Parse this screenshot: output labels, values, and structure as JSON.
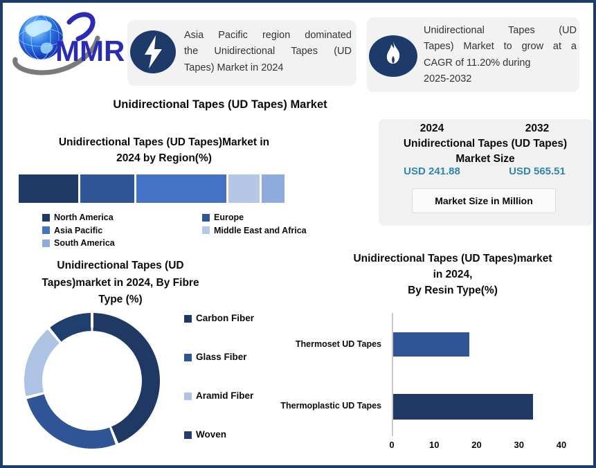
{
  "brand": {
    "logo_text": "MMR"
  },
  "callouts": [
    {
      "icon": "lightning-icon",
      "lines": [
        "Asia Pacific region dominated",
        "the Unidirectional Tapes (UD",
        "Tapes) Market in 2024"
      ]
    },
    {
      "icon": "flame-icon",
      "lines": [
        "Unidirectional Tapes (UD",
        "Tapes) Market to grow at a",
        "CAGR of 11.20% during",
        "2025-2032"
      ]
    }
  ],
  "main_title": "Unidirectional Tapes (UD Tapes) Market",
  "size_panel": {
    "year_left": "2024",
    "year_right": "2032",
    "title": "Unidirectional Tapes (UD Tapes)\nMarket Size",
    "value_left": "USD 241.88",
    "value_right": "USD 565.51",
    "unit_note": "Market Size in Million",
    "value_color": "#2E86AD"
  },
  "chart_data": [
    {
      "id": "by_region",
      "type": "stacked-bar",
      "title": "Unidirectional Tapes (UD Tapes)Market in\n2024 by Region(%)",
      "categories": [
        "North America",
        "Europe",
        "Asia Pacific",
        "Middle East and Africa",
        "South America"
      ],
      "values": [
        23,
        21,
        35,
        12,
        9
      ],
      "colors": [
        "#1F3864",
        "#2F5597",
        "#4472C4",
        "#B4C7E7",
        "#8FAADC"
      ],
      "legend_columns": [
        [
          0,
          2,
          4
        ],
        [
          1,
          3
        ]
      ],
      "legend_position": "bottom",
      "axis": "none"
    },
    {
      "id": "by_fibre_type",
      "type": "donut",
      "title": "Unidirectional Tapes (UD\nTapes)market in 2024, By Fibre\nType (%)",
      "categories": [
        "Carbon Fiber",
        "Glass Fiber",
        "Aramid Fiber",
        "Woven"
      ],
      "values": [
        44,
        27,
        18,
        11
      ],
      "colors": [
        "#1F3864",
        "#2F5597",
        "#AEC2E4",
        "#203E6E"
      ],
      "legend_position": "right"
    },
    {
      "id": "by_resin_type",
      "type": "bar",
      "orientation": "horizontal",
      "title": "Unidirectional Tapes (UD Tapes)market\nin 2024,\nBy Resin Type(%)",
      "categories": [
        "Thermoset UD Tapes",
        "Thermoplastic UD Tapes"
      ],
      "values": [
        18,
        33
      ],
      "colors": [
        "#2F5597",
        "#1F3864"
      ],
      "xlim": [
        0,
        40
      ],
      "xticks": [
        0,
        10,
        20,
        30,
        40
      ],
      "grid": "off"
    }
  ]
}
